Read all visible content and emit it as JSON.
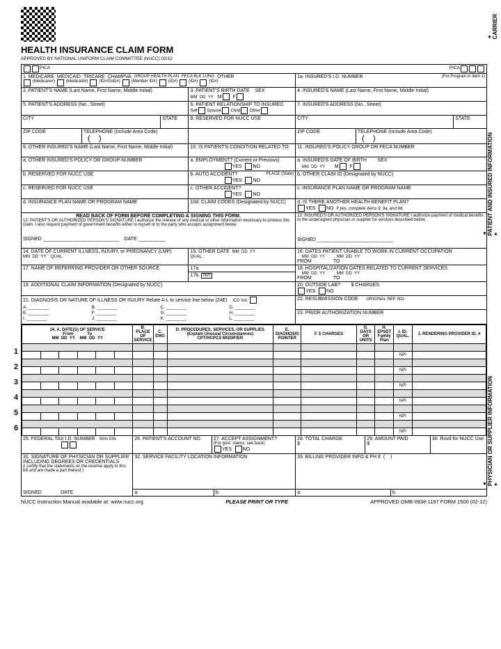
{
  "title": "HEALTH INSURANCE CLAIM FORM",
  "subtitle": "APPROVED BY NATIONAL UNIFORM CLAIM COMMITTEE (NUCC) 02/12",
  "pica": "PICA",
  "sideLabels": {
    "carrier": "CARRIER",
    "patient": "PATIENT AND INSURED INFORMATION",
    "physician": "PHYSICIAN OR SUPPLIER INFORMATION"
  },
  "box1": {
    "types": [
      "MEDICARE",
      "MEDICAID",
      "TRICARE",
      "CHAMPVA",
      "GROUP HEALTH PLAN",
      "FECA BLK LUNG",
      "OTHER"
    ],
    "subs": [
      "(Medicare#)",
      "(Medicaid#)",
      "(ID#/DoD#)",
      "(Member ID#)",
      "(ID#)",
      "(ID#)",
      "(ID#)"
    ]
  },
  "box1a": {
    "label": "1a. INSURED'S I.D. NUMBER",
    "sub": "(For Program in Item 1)"
  },
  "box2": "2. PATIENT'S NAME (Last Name, First Name, Middle Initial)",
  "box3": {
    "label": "3. PATIENT'S BIRTH DATE",
    "mm": "MM",
    "dd": "DD",
    "yy": "YY",
    "sex": "SEX",
    "m": "M",
    "f": "F"
  },
  "box4": "4. INSURED'S NAME (Last Name, First Name, Middle Initial)",
  "box5": "5. PATIENT'S ADDRESS (No., Street)",
  "box6": {
    "label": "6. PATIENT RELATIONSHIP TO INSURED",
    "opts": [
      "Self",
      "Spouse",
      "Child",
      "Other"
    ]
  },
  "box7": "7. INSURED'S ADDRESS (No., Street)",
  "city": "CITY",
  "state": "STATE",
  "zip": "ZIP CODE",
  "phone": "TELEPHONE (Include Area Code)",
  "box8": "8. RESERVED FOR NUCC USE",
  "box9": "9. OTHER INSURED'S NAME (Last Name, First Name, Middle Initial)",
  "box9a": "a. OTHER INSURED'S POLICY OR GROUP NUMBER",
  "box9b": "b. RESERVED FOR NUCC USE",
  "box9c": "c. RESERVED FOR NUCC USE",
  "box9d": "d. INSURANCE PLAN NAME OR PROGRAM NAME",
  "box10": "10. IS PATIENT'S CONDITION RELATED TO:",
  "box10a": "a. EMPLOYMENT? (Current or Previous)",
  "box10b": "b. AUTO ACCIDENT?",
  "box10c": "c. OTHER ACCIDENT?",
  "box10d": "10d. CLAIM CODES (Designated by NUCC)",
  "place": "PLACE (State)",
  "yes": "YES",
  "no": "NO",
  "box11": "11. INSURED'S POLICY GROUP OR FECA NUMBER",
  "box11a": "a. INSURED'S DATE OF BIRTH",
  "box11b": "b. OTHER CLAIM ID (Designated by NUCC)",
  "box11c": "c. INSURANCE PLAN NAME OR PROGRAM NAME",
  "box11d": "d. IS THERE ANOTHER HEALTH BENEFIT PLAN?",
  "box11d_note": "If yes, complete items 9, 9a, and 9d.",
  "readback": "READ BACK OF FORM BEFORE COMPLETING & SIGNING THIS FORM.",
  "box12": "12. PATIENT'S OR AUTHORIZED PERSON'S SIGNATURE  I authorize the release of any medical or other information necessary to process this claim. I also request payment of government benefits either to myself or to the party who accepts assignment below.",
  "box13": "13. INSURED'S OR AUTHORIZED PERSON'S SIGNATURE I authorize payment of medical benefits to the undersigned physician or supplier for services described below.",
  "signed": "SIGNED",
  "date": "DATE",
  "qual": "QUAL.",
  "box14": "14. DATE OF CURRENT ILLNESS, INJURY, or PREGNANCY (LMP)",
  "box15": "15. OTHER DATE",
  "box16": "16. DATES PATIENT UNABLE TO WORK IN CURRENT OCCUPATION",
  "from": "FROM",
  "to": "TO",
  "box17": "17. NAME OF REFERRING PROVIDER OR OTHER SOURCE",
  "box17a": "17a.",
  "box17b": "17b.",
  "npi": "NPI",
  "box18": "18. HOSPITALIZATION DATES RELATED TO CURRENT SERVICES",
  "box19": "19. ADDITIONAL CLAIM INFORMATION (Designated by NUCC)",
  "box20": "20. OUTSIDE LAB?",
  "charges": "$ CHARGES",
  "box21": "21. DIAGNOSIS OR NATURE OF ILLNESS OR INJURY  Relate A-L to service line below (24E)",
  "icd": "ICD Ind.",
  "box22": "22. RESUBMISSION CODE",
  "origref": "ORIGINAL REF. NO.",
  "box23": "23. PRIOR AUTHORIZATION NUMBER",
  "diag": [
    "A.",
    "B.",
    "C.",
    "D.",
    "E.",
    "F.",
    "G.",
    "H.",
    "I.",
    "J.",
    "K.",
    "L."
  ],
  "box24hdr": {
    "a": "24. A.    DATE(S) OF SERVICE",
    "from": "From",
    "to": "To",
    "b": "B. PLACE OF SERVICE",
    "c": "C. EMG",
    "d": "D. PROCEDURES, SERVICES, OR SUPPLIES",
    "d2": "(Explain Unusual Circumstances)",
    "d3": "CPT/HCPCS          MODIFIER",
    "e": "E. DIAGNOSIS POINTER",
    "f": "F. $ CHARGES",
    "g": "G. DAYS OR UNITS",
    "h": "H. EPSDT Family Plan",
    "i": "I. ID. QUAL.",
    "j": "J. RENDERING PROVIDER ID. #"
  },
  "svcRows": [
    1,
    2,
    3,
    4,
    5,
    6
  ],
  "box25": "25. FEDERAL TAX I.D. NUMBER",
  "ssn": "SSN",
  "ein": "EIN",
  "box26": "26. PATIENT'S ACCOUNT NO.",
  "box27": "27. ACCEPT ASSIGNMENT?",
  "box27sub": "(For govt. claims, see back)",
  "box28": "28. TOTAL CHARGE",
  "box29": "29. AMOUNT PAID",
  "box30": "30. Rsvd for NUCC Use",
  "box31": "31. SIGNATURE OF PHYSICIAN OR SUPPLIER INCLUDING DEGREES OR CREDENTIALS",
  "box31sub": "(I certify that the statements on the reverse apply to this bill and are made a part thereof.)",
  "box32": "32. SERVICE FACILITY LOCATION INFORMATION",
  "box33": "33. BILLING PROVIDER INFO & PH #",
  "a": "a.",
  "b": "b.",
  "footer": {
    "left": "NUCC Instruction Manual available at: www.nucc.org",
    "mid": "PLEASE PRINT OR TYPE",
    "right": "APPROVED OMB-0938-1197 FORM 1500 (02-12)"
  }
}
